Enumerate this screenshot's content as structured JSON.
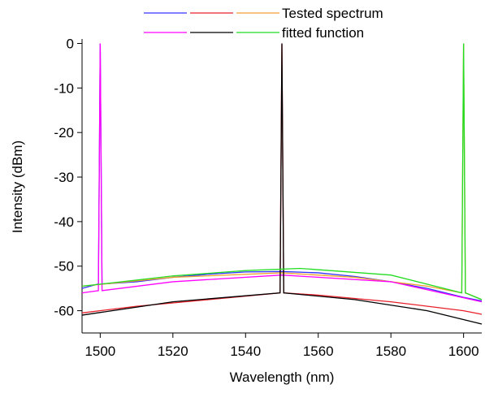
{
  "chart_data": {
    "type": "line",
    "x_label": "Wavelength (nm)",
    "y_label": "Intensity (dBm)",
    "xlim": [
      1495,
      1605
    ],
    "xticks": [
      1500,
      1520,
      1540,
      1560,
      1580,
      1600
    ],
    "ylim": [
      -65,
      1
    ],
    "yticks": [
      0,
      -10,
      -20,
      -30,
      -40,
      -50,
      -60
    ],
    "series_groups": [
      {
        "name": "Tested spectrum",
        "series": [
          {
            "color": "#3333ff",
            "x": [
              1495,
              1499.5,
              1500,
              1500.5,
              1510,
              1520,
              1530,
              1540,
              1550,
              1560,
              1570,
              1580,
              1590,
              1600,
              1605
            ],
            "values": [
              -55,
              -54,
              0,
              -54,
              -53.5,
              -52.5,
              -51.8,
              -51.3,
              -51.2,
              -51.5,
              -52.3,
              -53.5,
              -55,
              -57,
              -57.8
            ]
          },
          {
            "color": "#e8202a",
            "x": [
              1495,
              1510,
              1530,
              1549.5,
              1550,
              1550.5,
              1560,
              1580,
              1600,
              1605
            ],
            "values": [
              -60.5,
              -59,
              -57.5,
              -56,
              0,
              -56,
              -56.5,
              -58,
              -60,
              -60.8
            ]
          },
          {
            "color": "#f0a030",
            "x": [
              1495,
              1520,
              1550,
              1570,
              1590,
              1599.5,
              1600,
              1600.5,
              1605
            ],
            "values": [
              -54.5,
              -52.5,
              -51.5,
              -52.5,
              -54.5,
              -56,
              0,
              -56,
              -57.5
            ]
          }
        ]
      },
      {
        "name": "fitted function",
        "series": [
          {
            "color": "#ff00ff",
            "x": [
              1495,
              1499.5,
              1500,
              1500.5,
              1520,
              1550,
              1580,
              1605
            ],
            "values": [
              -56,
              -55.5,
              0,
              -55.5,
              -53.5,
              -52,
              -53.5,
              -58
            ]
          },
          {
            "color": "#000000",
            "x": [
              1495,
              1520,
              1549.5,
              1550,
              1550.5,
              1570,
              1590,
              1605
            ],
            "values": [
              -61,
              -58,
              -56,
              0,
              -56,
              -57.5,
              -60,
              -63
            ]
          },
          {
            "color": "#22dd22",
            "x": [
              1495,
              1520,
              1540,
              1555,
              1580,
              1599.5,
              1600,
              1600.5,
              1605
            ],
            "values": [
              -54.5,
              -52.2,
              -51,
              -50.5,
              -52,
              -56,
              0,
              -56,
              -57.5
            ]
          }
        ]
      }
    ]
  }
}
